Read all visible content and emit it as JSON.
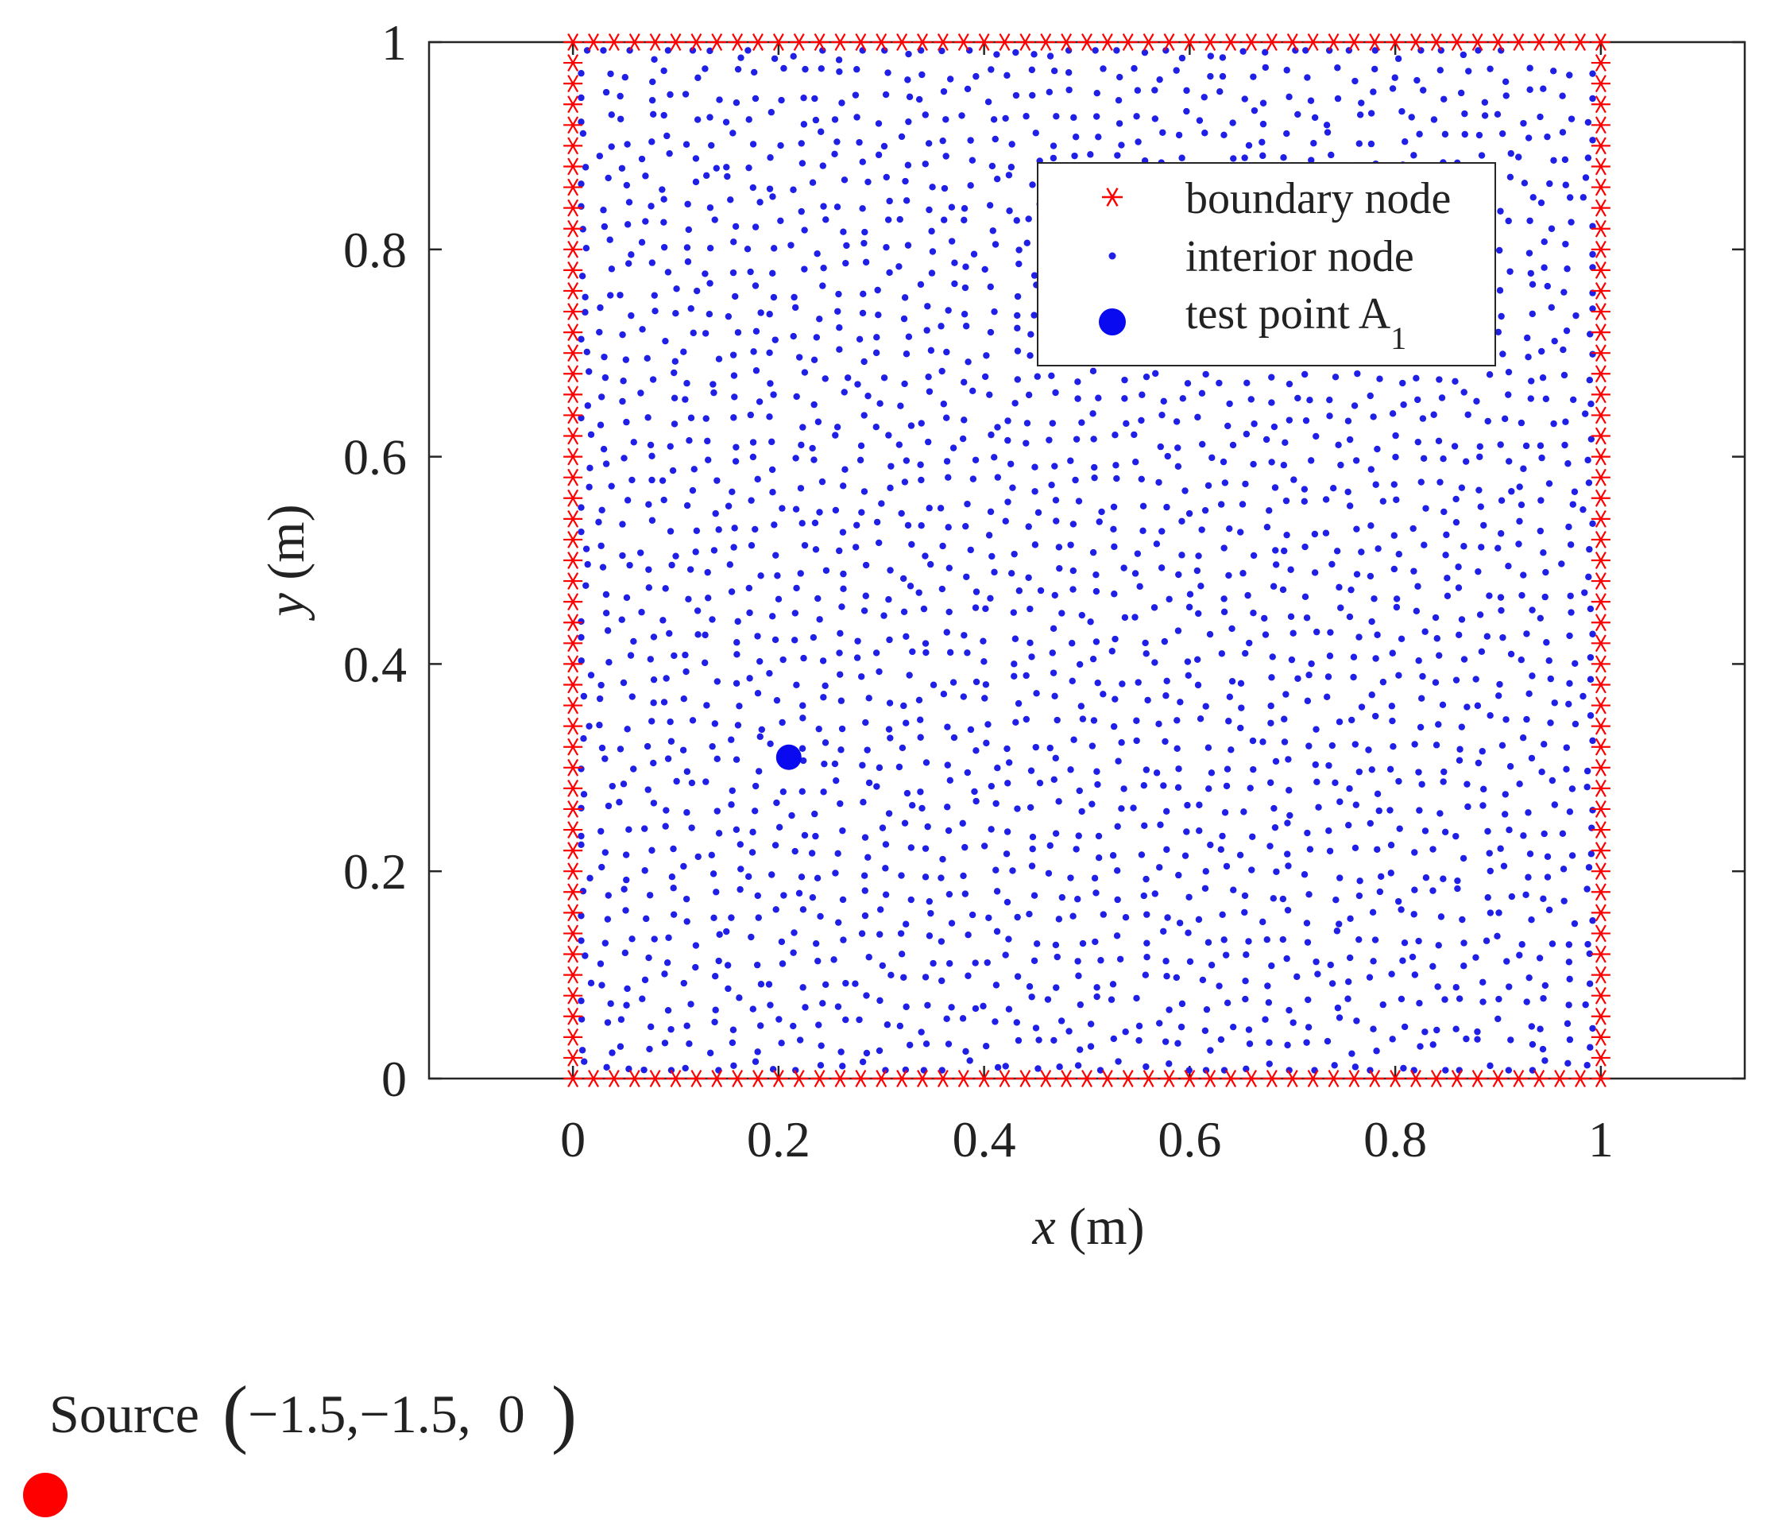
{
  "chart_data": {
    "type": "scatter",
    "title": "",
    "xlabel": {
      "var": "x",
      "unit": "(m)"
    },
    "ylabel": {
      "var": "y",
      "unit": "(m)"
    },
    "xlim": [
      -0.14,
      1.14
    ],
    "ylim": [
      0,
      1
    ],
    "xticks": [
      0,
      0.2,
      0.4,
      0.6,
      0.8,
      1
    ],
    "xtick_labels": [
      "0",
      "0.2",
      "0.4",
      "0.6",
      "0.8",
      "1"
    ],
    "yticks": [
      0,
      0.2,
      0.4,
      0.6,
      0.8,
      1
    ],
    "ytick_labels": [
      "0",
      "0.2",
      "0.4",
      "0.6",
      "0.8",
      "1"
    ],
    "grid": false,
    "legend_position": "top-right",
    "series": [
      {
        "name": "boundary node",
        "marker": "asterisk",
        "color": "#ff0000",
        "nodes_per_side": 50,
        "domain": {
          "x": [
            0,
            1
          ],
          "y": [
            0,
            1
          ]
        }
      },
      {
        "name": "interior node",
        "marker": "dot",
        "color": "#1f1fe6",
        "count": 2300,
        "distribution": "quasi-uniform scattered",
        "domain": {
          "x": [
            0,
            1
          ],
          "y": [
            0,
            1
          ]
        }
      },
      {
        "name": "test point A",
        "name_subscript": "1",
        "marker": "filled-circle",
        "color": "#0a0af0",
        "points": [
          {
            "x": 0.21,
            "y": 0.31
          }
        ]
      }
    ]
  },
  "source": {
    "label": "Source",
    "coords": "−1.5,−1.5,  0",
    "open_paren": "(",
    "close_paren": ")",
    "marker_color": "#ff0000"
  }
}
